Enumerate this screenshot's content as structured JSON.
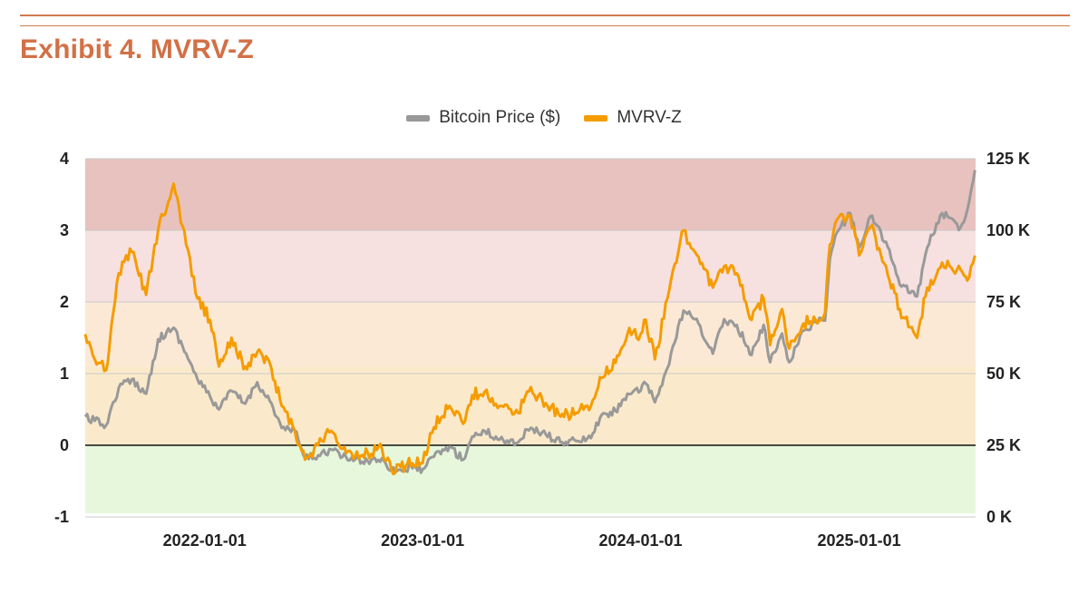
{
  "header": {
    "title": "Exhibit 4. MVRV-Z"
  },
  "colors": {
    "accent": "#d27046",
    "price_line": "#999999",
    "mvrvz_line": "#f59c00",
    "band_red": "#e8c2bf",
    "band_pink": "#f6e1e0",
    "band_peach": "#fbe9d6",
    "band_yellow": "#faeacb",
    "band_green": "#e6f7dc"
  },
  "chart_data": {
    "type": "line",
    "title": "Exhibit 4. MVRV-Z",
    "legend": {
      "position": "top-center",
      "entries": [
        "Bitcoin Price ($)",
        "MVRV-Z"
      ]
    },
    "x_ticks": [
      "2022-01-01",
      "2023-01-01",
      "2024-01-01",
      "2025-01-01"
    ],
    "x_range": [
      "2021-06-15",
      "2025-07-15"
    ],
    "y_left": {
      "range": [
        -1,
        4
      ],
      "ticks": [
        "4",
        "3",
        "2",
        "1",
        "0",
        "-1"
      ]
    },
    "y_right": {
      "range": [
        0,
        125000
      ],
      "ticks": [
        "125 K",
        "100 K",
        "75 K",
        "50 K",
        "25 K",
        "0 K"
      ]
    },
    "grid": true,
    "bands_mvrvz": [
      {
        "from": 3,
        "to": 4,
        "color": "red"
      },
      {
        "from": 2,
        "to": 3,
        "color": "pink"
      },
      {
        "from": 1.1,
        "to": 2,
        "color": "peach"
      },
      {
        "from": 0,
        "to": 1.1,
        "color": "yellow"
      },
      {
        "from": -0.95,
        "to": 0,
        "color": "green"
      }
    ],
    "series": [
      {
        "name": "Bitcoin Price ($)",
        "axis": "right",
        "x": [
          "2021-06-15",
          "2021-07-01",
          "2021-07-20",
          "2021-08-10",
          "2021-09-01",
          "2021-09-25",
          "2021-10-15",
          "2021-11-10",
          "2021-12-01",
          "2021-12-20",
          "2022-01-10",
          "2022-01-25",
          "2022-02-15",
          "2022-03-10",
          "2022-03-30",
          "2022-04-20",
          "2022-05-10",
          "2022-06-01",
          "2022-06-18",
          "2022-07-10",
          "2022-08-01",
          "2022-08-20",
          "2022-09-10",
          "2022-10-01",
          "2022-10-25",
          "2022-11-10",
          "2022-11-25",
          "2022-12-15",
          "2023-01-01",
          "2023-01-20",
          "2023-02-15",
          "2023-03-10",
          "2023-03-25",
          "2023-04-15",
          "2023-05-10",
          "2023-06-10",
          "2023-06-25",
          "2023-07-20",
          "2023-08-20",
          "2023-09-15",
          "2023-10-10",
          "2023-10-25",
          "2023-11-20",
          "2023-12-10",
          "2024-01-01",
          "2024-01-10",
          "2024-01-25",
          "2024-02-15",
          "2024-03-13",
          "2024-04-01",
          "2024-05-01",
          "2024-05-20",
          "2024-06-10",
          "2024-07-05",
          "2024-07-25",
          "2024-08-05",
          "2024-08-25",
          "2024-09-06",
          "2024-09-30",
          "2024-10-20",
          "2024-11-05",
          "2024-11-13",
          "2024-11-22",
          "2024-12-17",
          "2025-01-01",
          "2025-01-20",
          "2025-02-15",
          "2025-03-10",
          "2025-04-08",
          "2025-04-25",
          "2025-05-20",
          "2025-06-20",
          "2025-07-01",
          "2025-07-14"
        ],
        "values": [
          35000,
          33500,
          32000,
          45000,
          48000,
          43000,
          62000,
          66000,
          57000,
          48000,
          42000,
          37500,
          44000,
          39500,
          47000,
          40500,
          31000,
          30000,
          20500,
          21500,
          23500,
          21000,
          20000,
          19500,
          20500,
          16500,
          16500,
          17000,
          16600,
          21000,
          24500,
          20000,
          28000,
          30000,
          27000,
          26000,
          30500,
          29500,
          26000,
          26500,
          27500,
          34500,
          37000,
          43000,
          44000,
          46500,
          40000,
          52000,
          72000,
          69000,
          57000,
          69000,
          67000,
          56500,
          67000,
          54000,
          64000,
          54000,
          65000,
          68000,
          68500,
          90000,
          98000,
          106000,
          94000,
          105000,
          96000,
          81000,
          77000,
          94000,
          106000,
          101000,
          107000,
          121000
        ]
      },
      {
        "name": "MVRV-Z",
        "axis": "left",
        "x": [
          "2021-06-15",
          "2021-07-01",
          "2021-07-20",
          "2021-08-10",
          "2021-09-01",
          "2021-09-25",
          "2021-10-15",
          "2021-11-10",
          "2021-12-01",
          "2021-12-20",
          "2022-01-10",
          "2022-01-25",
          "2022-02-15",
          "2022-03-10",
          "2022-03-30",
          "2022-04-20",
          "2022-05-10",
          "2022-06-01",
          "2022-06-18",
          "2022-07-10",
          "2022-08-01",
          "2022-08-20",
          "2022-09-10",
          "2022-10-01",
          "2022-10-25",
          "2022-11-10",
          "2022-11-25",
          "2022-12-15",
          "2023-01-01",
          "2023-01-20",
          "2023-02-15",
          "2023-03-10",
          "2023-03-25",
          "2023-04-15",
          "2023-05-10",
          "2023-06-10",
          "2023-06-25",
          "2023-07-20",
          "2023-08-20",
          "2023-09-15",
          "2023-10-10",
          "2023-10-25",
          "2023-11-20",
          "2023-12-10",
          "2024-01-01",
          "2024-01-10",
          "2024-01-25",
          "2024-02-15",
          "2024-03-13",
          "2024-04-01",
          "2024-05-01",
          "2024-05-20",
          "2024-06-10",
          "2024-07-05",
          "2024-07-25",
          "2024-08-05",
          "2024-08-25",
          "2024-09-06",
          "2024-09-30",
          "2024-10-20",
          "2024-11-05",
          "2024-11-13",
          "2024-11-22",
          "2024-12-17",
          "2025-01-01",
          "2025-01-20",
          "2025-02-15",
          "2025-03-10",
          "2025-04-08",
          "2025-04-25",
          "2025-05-20",
          "2025-06-20",
          "2025-07-01",
          "2025-07-14"
        ],
        "values": [
          1.55,
          1.2,
          1.05,
          2.4,
          2.7,
          2.1,
          3.0,
          3.65,
          2.8,
          2.05,
          1.75,
          1.1,
          1.5,
          1.1,
          1.3,
          1.15,
          0.55,
          0.2,
          -0.2,
          0.0,
          0.2,
          -0.05,
          -0.15,
          -0.1,
          -0.05,
          -0.35,
          -0.3,
          -0.25,
          -0.25,
          0.25,
          0.55,
          0.3,
          0.7,
          0.75,
          0.55,
          0.45,
          0.75,
          0.65,
          0.4,
          0.45,
          0.55,
          0.95,
          1.15,
          1.55,
          1.55,
          1.75,
          1.2,
          2.05,
          3.0,
          2.7,
          2.2,
          2.5,
          2.4,
          1.75,
          2.05,
          1.4,
          1.9,
          1.35,
          1.7,
          1.75,
          1.85,
          2.8,
          3.1,
          3.2,
          2.65,
          3.05,
          2.5,
          1.9,
          1.5,
          2.2,
          2.55,
          2.45,
          2.3,
          2.65
        ]
      }
    ]
  }
}
